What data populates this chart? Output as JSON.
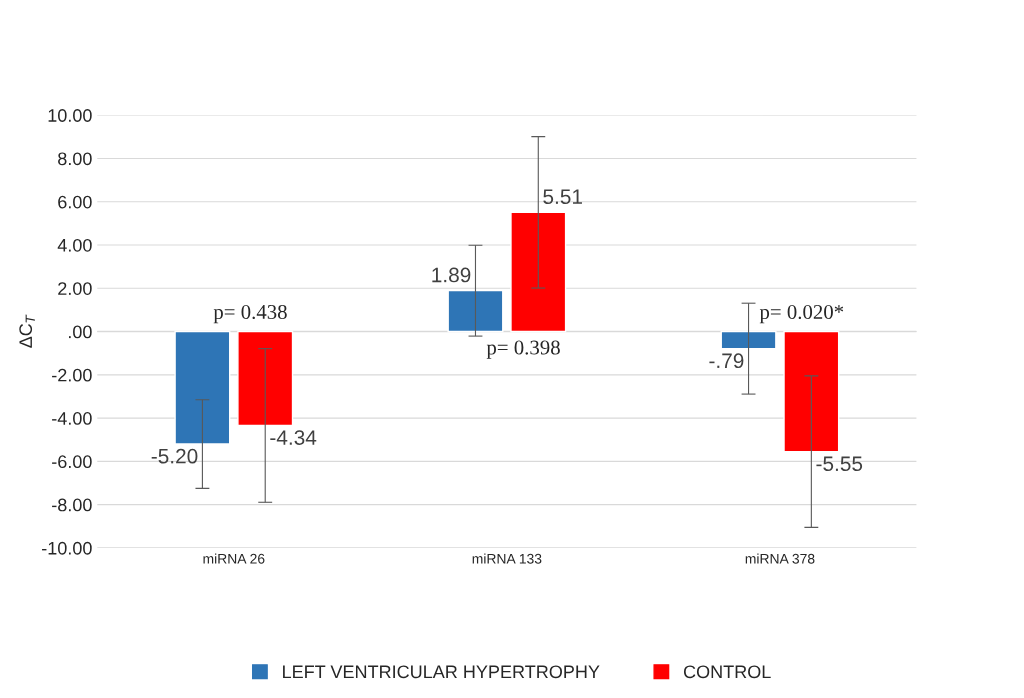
{
  "chart_data": {
    "type": "bar",
    "ylabel": "ΔC$_{T}$",
    "categories": [
      "miRNA 26",
      "miRNA 133",
      "miRNA 378"
    ],
    "series": [
      {
        "name": "LEFT VENTRICULAR HYPERTROPHY",
        "color": "#2e75b6",
        "values": [
          -5.2,
          1.89,
          -0.79
        ],
        "errors": [
          2.05,
          2.1,
          2.1
        ],
        "value_labels": [
          "-5.20",
          "1.89",
          "-.79"
        ]
      },
      {
        "name": "CONTROL",
        "color": "#ff0000",
        "values": [
          -4.34,
          5.51,
          -5.55
        ],
        "errors": [
          3.55,
          3.5,
          3.5
        ],
        "value_labels": [
          "-4.34",
          "5.51",
          "-5.55"
        ]
      }
    ],
    "ylim": [
      -10,
      10
    ],
    "yticks": [
      {
        "value": -10,
        "label": "-10.00"
      },
      {
        "value": -8,
        "label": "-8.00"
      },
      {
        "value": -6,
        "label": "-6.00"
      },
      {
        "value": -4,
        "label": "-4.00"
      },
      {
        "value": -2,
        "label": "-2.00"
      },
      {
        "value": 0,
        "label": ".00"
      },
      {
        "value": 2,
        "label": "2.00"
      },
      {
        "value": 4,
        "label": "4.00"
      },
      {
        "value": 6,
        "label": "6.00"
      },
      {
        "value": 8,
        "label": "8.00"
      },
      {
        "value": 10,
        "label": "10.00"
      }
    ],
    "grid": "y",
    "legend": "bottom",
    "annotations": [
      "p= 0.438",
      "p= 0.398",
      "p= 0.020*"
    ]
  }
}
